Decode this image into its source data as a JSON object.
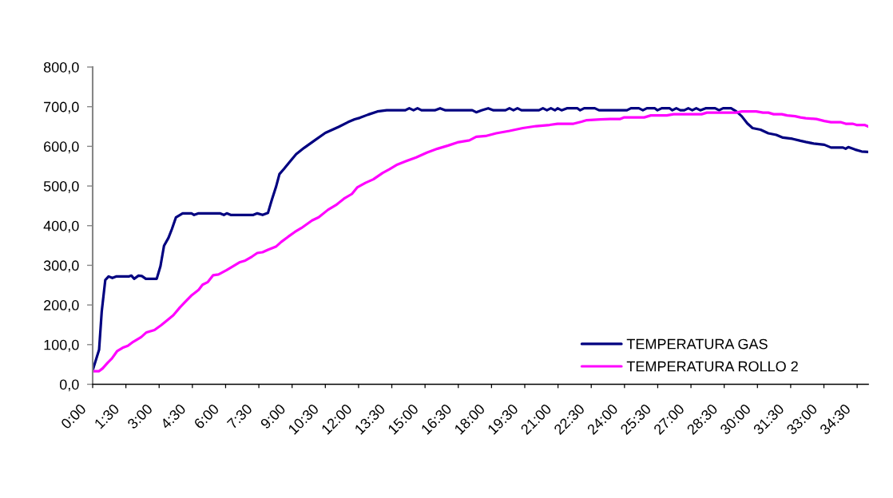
{
  "chart_data": {
    "type": "line",
    "xlim": [
      0,
      35.0
    ],
    "xticks": [
      {
        "value": 0,
        "label": "0:00"
      },
      {
        "value": 1.5,
        "label": "1:30"
      },
      {
        "value": 3,
        "label": "3:00"
      },
      {
        "value": 4.5,
        "label": "4:30"
      },
      {
        "value": 6,
        "label": "6:00"
      },
      {
        "value": 7.5,
        "label": "7:30"
      },
      {
        "value": 9,
        "label": "9:00"
      },
      {
        "value": 10.5,
        "label": "10:30"
      },
      {
        "value": 12,
        "label": "12:00"
      },
      {
        "value": 13.5,
        "label": "13:30"
      },
      {
        "value": 15,
        "label": "15:00"
      },
      {
        "value": 16.5,
        "label": "16:30"
      },
      {
        "value": 18,
        "label": "18:00"
      },
      {
        "value": 19.5,
        "label": "19:30"
      },
      {
        "value": 21,
        "label": "21:00"
      },
      {
        "value": 22.5,
        "label": "22:30"
      },
      {
        "value": 24,
        "label": "24:00"
      },
      {
        "value": 25.5,
        "label": "25:30"
      },
      {
        "value": 27,
        "label": "27:00"
      },
      {
        "value": 28.5,
        "label": "28:30"
      },
      {
        "value": 30,
        "label": "30:00"
      },
      {
        "value": 31.5,
        "label": "31:30"
      },
      {
        "value": 33,
        "label": "33:00"
      },
      {
        "value": 34.5,
        "label": "34:30"
      }
    ],
    "ylim": [
      0,
      800
    ],
    "yticks": [
      {
        "value": 0,
        "label": "0,0"
      },
      {
        "value": 100,
        "label": "100,0"
      },
      {
        "value": 200,
        "label": "200,0"
      },
      {
        "value": 300,
        "label": "300,0"
      },
      {
        "value": 400,
        "label": "400,0"
      },
      {
        "value": 500,
        "label": "500,0"
      },
      {
        "value": 600,
        "label": "600,0"
      },
      {
        "value": 700,
        "label": "700,0"
      },
      {
        "value": 800,
        "label": "800,0"
      }
    ],
    "grid": false,
    "legend": "bottom right",
    "series": [
      {
        "name": "TEMPERATURA GAS",
        "color": "#000080",
        "x": [
          0,
          0.29,
          0.41,
          0.57,
          0.72,
          0.89,
          1.08,
          1.65,
          1.75,
          1.87,
          2.07,
          2.22,
          2.4,
          2.89,
          3.06,
          3.22,
          3.42,
          3.58,
          3.76,
          4.06,
          4.46,
          4.58,
          4.78,
          5.74,
          5.92,
          6.05,
          6.23,
          7.25,
          7.43,
          7.67,
          7.91,
          8.09,
          8.27,
          8.43,
          8.63,
          8.88,
          9.18,
          9.54,
          10.02,
          10.5,
          11.1,
          11.52,
          11.82,
          12.06,
          12.43,
          12.85,
          13.27,
          14.11,
          14.29,
          14.48,
          14.66,
          14.84,
          15.44,
          15.68,
          15.92,
          17.13,
          17.31,
          17.55,
          17.85,
          18.09,
          18.63,
          18.81,
          18.99,
          19.17,
          19.35,
          20.14,
          20.32,
          20.5,
          20.68,
          20.86,
          20.98,
          21.16,
          21.4,
          21.88,
          22.0,
          22.18,
          22.66,
          22.85,
          24.11,
          24.29,
          24.65,
          24.83,
          25.01,
          25.37,
          25.49,
          25.68,
          26.04,
          26.16,
          26.34,
          26.52,
          26.7,
          26.88,
          27.06,
          27.24,
          27.42,
          27.66,
          28.09,
          28.27,
          28.45,
          28.81,
          29.05,
          29.29,
          29.54,
          29.78,
          30.14,
          30.49,
          30.85,
          31.15,
          31.58,
          31.94,
          32.18,
          32.54,
          33.02,
          33.32,
          33.86,
          33.98,
          34.1,
          34.4,
          34.7,
          35.0
        ],
        "values": [
          35,
          87,
          184,
          263,
          272,
          268,
          272,
          272,
          274,
          266,
          274,
          273,
          266,
          266,
          298,
          349,
          369,
          392,
          421,
          431,
          431,
          427,
          431,
          431,
          427,
          431,
          427,
          427,
          431,
          427,
          432,
          466,
          497,
          530,
          543,
          560,
          580,
          596,
          615,
          634,
          649,
          661,
          668,
          672,
          680,
          688,
          691,
          691,
          696,
          691,
          696,
          691,
          691,
          696,
          691,
          691,
          686,
          691,
          696,
          691,
          691,
          696,
          691,
          696,
          691,
          691,
          696,
          691,
          696,
          691,
          696,
          691,
          696,
          696,
          691,
          696,
          696,
          691,
          691,
          696,
          696,
          691,
          696,
          696,
          691,
          696,
          696,
          691,
          696,
          691,
          691,
          696,
          691,
          696,
          691,
          696,
          696,
          691,
          696,
          696,
          688,
          676,
          658,
          646,
          642,
          633,
          629,
          622,
          619,
          614,
          611,
          607,
          604,
          597,
          597,
          594,
          598,
          592,
          587,
          586
        ]
      },
      {
        "name": "TEMPERATURA ROLLO 2",
        "color": "#ff00ff",
        "x": [
          0,
          0.29,
          0.45,
          0.69,
          0.87,
          1.11,
          1.35,
          1.59,
          1.83,
          2.19,
          2.43,
          2.79,
          3.09,
          3.4,
          3.64,
          3.94,
          4.18,
          4.48,
          4.78,
          4.96,
          5.2,
          5.44,
          5.68,
          6.05,
          6.35,
          6.65,
          6.89,
          7.19,
          7.43,
          7.67,
          7.91,
          8.27,
          8.51,
          8.82,
          9.12,
          9.42,
          9.9,
          10.2,
          10.62,
          10.98,
          11.34,
          11.7,
          11.95,
          12.31,
          12.67,
          13.09,
          13.39,
          13.75,
          14.11,
          14.6,
          15.08,
          15.56,
          16.04,
          16.46,
          17.0,
          17.31,
          17.73,
          18.21,
          18.81,
          19.41,
          20.01,
          20.62,
          20.98,
          21.7,
          22.06,
          22.3,
          22.9,
          23.39,
          23.81,
          23.99,
          24.89,
          25.19,
          25.91,
          26.21,
          27.48,
          27.72,
          29.05,
          29.29,
          29.95,
          30.25,
          30.49,
          30.73,
          31.1,
          31.34,
          31.7,
          31.94,
          32.18,
          32.66,
          33.02,
          33.32,
          33.75,
          33.98,
          34.29,
          34.47,
          34.83,
          35.0
        ],
        "values": [
          33,
          33,
          40,
          55,
          65,
          84,
          92,
          97,
          107,
          119,
          131,
          137,
          149,
          163,
          174,
          194,
          208,
          225,
          238,
          251,
          258,
          275,
          277,
          288,
          298,
          308,
          312,
          322,
          331,
          333,
          339,
          347,
          359,
          372,
          384,
          394,
          413,
          421,
          440,
          452,
          468,
          480,
          497,
          508,
          517,
          533,
          542,
          554,
          562,
          572,
          584,
          594,
          602,
          610,
          615,
          624,
          626,
          633,
          639,
          646,
          651,
          654,
          657,
          657,
          662,
          666,
          668,
          669,
          669,
          673,
          673,
          678,
          678,
          681,
          681,
          685,
          685,
          688,
          688,
          685,
          685,
          681,
          681,
          678,
          676,
          673,
          671,
          669,
          664,
          661,
          661,
          657,
          657,
          654,
          654,
          650
        ]
      }
    ]
  }
}
